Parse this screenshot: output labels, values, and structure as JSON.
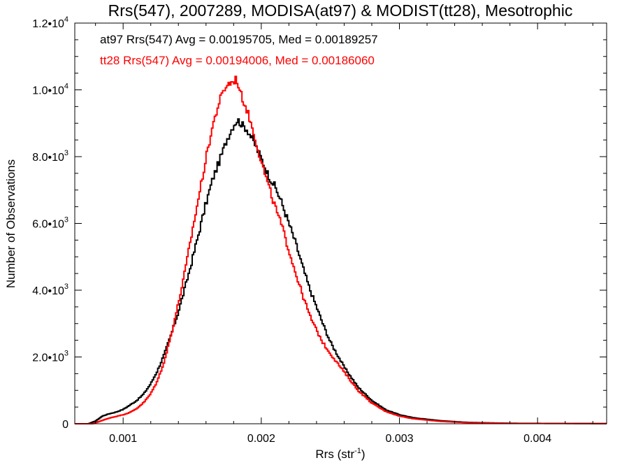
{
  "chart_data": {
    "type": "line",
    "title": "Rrs(547), 2007289, MODISA(at97) & MODIST(tt28), Mesotrophic",
    "xlabel": "Rrs (str",
    "xlabel_sup": "-1",
    "xlabel_suffix": ")",
    "ylabel": "Number of Observations",
    "xlim": [
      0.00065,
      0.0045
    ],
    "ylim": [
      0,
      12000
    ],
    "xticks": [
      {
        "value": 0.001,
        "label": "0.001"
      },
      {
        "value": 0.002,
        "label": "0.002"
      },
      {
        "value": 0.003,
        "label": "0.003"
      },
      {
        "value": 0.004,
        "label": "0.004"
      }
    ],
    "yticks": [
      {
        "value": 0,
        "label": "0",
        "sup": ""
      },
      {
        "value": 2000,
        "label": "2.0•10",
        "sup": "3"
      },
      {
        "value": 4000,
        "label": "4.0•10",
        "sup": "3"
      },
      {
        "value": 6000,
        "label": "6.0•10",
        "sup": "3"
      },
      {
        "value": 8000,
        "label": "8.0•10",
        "sup": "3"
      },
      {
        "value": 10000,
        "label": "1.0•10",
        "sup": "4"
      },
      {
        "value": 12000,
        "label": "1.2•10",
        "sup": "4"
      }
    ],
    "annotations": [
      {
        "text": "at97 Rrs(547) Avg = 0.00195705, Med = 0.00189257",
        "color": "#000000"
      },
      {
        "text": "tt28 Rrs(547) Avg = 0.00194006, Med = 0.00186060",
        "color": "#ff0000"
      }
    ],
    "series": [
      {
        "color": "#000000",
        "points": [
          [
            0.00065,
            0
          ],
          [
            0.00075,
            0
          ],
          [
            0.0008,
            80
          ],
          [
            0.00085,
            230
          ],
          [
            0.0009,
            300
          ],
          [
            0.00095,
            350
          ],
          [
            0.001,
            430
          ],
          [
            0.00105,
            560
          ],
          [
            0.0011,
            700
          ],
          [
            0.00115,
            900
          ],
          [
            0.0012,
            1200
          ],
          [
            0.00125,
            1600
          ],
          [
            0.0013,
            2100
          ],
          [
            0.00135,
            2700
          ],
          [
            0.0014,
            3350
          ],
          [
            0.00145,
            4100
          ],
          [
            0.0015,
            4900
          ],
          [
            0.00155,
            5750
          ],
          [
            0.0016,
            6600
          ],
          [
            0.00165,
            7350
          ],
          [
            0.0017,
            7900
          ],
          [
            0.00175,
            8500
          ],
          [
            0.0018,
            8950
          ],
          [
            0.00183,
            9100
          ],
          [
            0.00185,
            9000
          ],
          [
            0.0019,
            8800
          ],
          [
            0.00195,
            8400
          ],
          [
            0.002,
            7950
          ],
          [
            0.00205,
            7450
          ],
          [
            0.0021,
            7100
          ],
          [
            0.00215,
            6600
          ],
          [
            0.0022,
            6000
          ],
          [
            0.00225,
            5400
          ],
          [
            0.0023,
            4700
          ],
          [
            0.00235,
            4050
          ],
          [
            0.0024,
            3500
          ],
          [
            0.00245,
            2950
          ],
          [
            0.0025,
            2450
          ],
          [
            0.0026,
            1700
          ],
          [
            0.0027,
            1100
          ],
          [
            0.0028,
            700
          ],
          [
            0.0029,
            420
          ],
          [
            0.003,
            270
          ],
          [
            0.0031,
            180
          ],
          [
            0.0033,
            90
          ],
          [
            0.0035,
            40
          ],
          [
            0.0038,
            15
          ],
          [
            0.0045,
            5
          ]
        ]
      },
      {
        "color": "#ff0000",
        "points": [
          [
            0.00065,
            0
          ],
          [
            0.00078,
            0
          ],
          [
            0.0008,
            30
          ],
          [
            0.00085,
            100
          ],
          [
            0.0009,
            170
          ],
          [
            0.00095,
            220
          ],
          [
            0.001,
            270
          ],
          [
            0.00105,
            340
          ],
          [
            0.0011,
            460
          ],
          [
            0.00115,
            640
          ],
          [
            0.0012,
            900
          ],
          [
            0.00125,
            1300
          ],
          [
            0.0013,
            1900
          ],
          [
            0.00135,
            2700
          ],
          [
            0.0014,
            3600
          ],
          [
            0.00145,
            4600
          ],
          [
            0.0015,
            5750
          ],
          [
            0.00155,
            6850
          ],
          [
            0.0016,
            7950
          ],
          [
            0.00165,
            8950
          ],
          [
            0.0017,
            9700
          ],
          [
            0.00175,
            10150
          ],
          [
            0.0018,
            10250
          ],
          [
            0.00182,
            10350
          ],
          [
            0.00185,
            9900
          ],
          [
            0.0019,
            9350
          ],
          [
            0.00195,
            8650
          ],
          [
            0.002,
            7850
          ],
          [
            0.00205,
            7150
          ],
          [
            0.0021,
            6500
          ],
          [
            0.00215,
            5900
          ],
          [
            0.0022,
            5200
          ],
          [
            0.00225,
            4500
          ],
          [
            0.0023,
            3850
          ],
          [
            0.00235,
            3250
          ],
          [
            0.0024,
            2800
          ],
          [
            0.00245,
            2400
          ],
          [
            0.0025,
            2100
          ],
          [
            0.0026,
            1550
          ],
          [
            0.0027,
            1000
          ],
          [
            0.0028,
            620
          ],
          [
            0.0029,
            370
          ],
          [
            0.003,
            230
          ],
          [
            0.0031,
            150
          ],
          [
            0.0033,
            70
          ],
          [
            0.0035,
            30
          ],
          [
            0.0038,
            12
          ],
          [
            0.0045,
            4
          ]
        ]
      }
    ]
  }
}
